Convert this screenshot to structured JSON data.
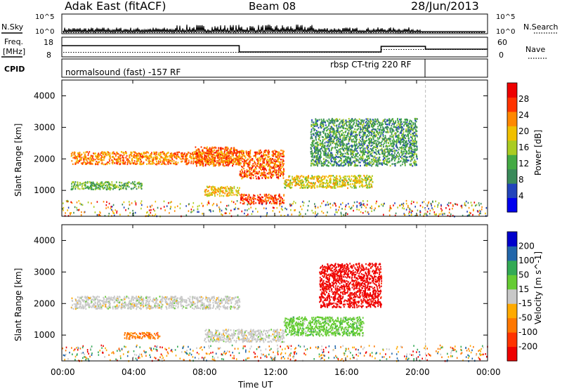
{
  "header": {
    "station": "Adak East (fitACF)",
    "beam": "Beam 08",
    "date": "28/Jun/2013"
  },
  "panels": {
    "nsky_label": "N.Sky",
    "nsearch_label": "N.Search",
    "freq_label_1": "Freq.",
    "freq_label_2": "[MHz]",
    "nave_label": "Nave",
    "cpid_label": "CPID",
    "nsky_ticks": [
      "10^5",
      "10^0"
    ],
    "nsearch_ticks": [
      "10^5",
      "10^0"
    ],
    "freq_ticks": [
      "18",
      "8"
    ],
    "nave_ticks": [
      "60",
      "0"
    ],
    "cpid_left": "normalsound (fast) -157 RF",
    "cpid_right": "rbsp CT-trig 220 RF"
  },
  "colors": {
    "power_scale": [
      "#0000ee",
      "#2244bb",
      "#3a8a5a",
      "#44aa44",
      "#aacc22",
      "#f0c000",
      "#ff8800",
      "#ff3300",
      "#ee0000"
    ],
    "velocity_scale": [
      "#0000cc",
      "#2266aa",
      "#33aa55",
      "#66cc33",
      "#c8c8c8",
      "#ffaa00",
      "#ff7700",
      "#ff3300",
      "#ee0000"
    ]
  },
  "chart_data": [
    {
      "type": "heatmap",
      "title": "",
      "xlabel": "Time UT",
      "ylabel": "Slant Range [km]",
      "x_ticks": [
        "00:00",
        "04:00",
        "08:00",
        "12:00",
        "16:00",
        "20:00",
        "00:00"
      ],
      "y_ticks": [
        "1000",
        "2000",
        "3000",
        "4000"
      ],
      "colorbar_label": "Power [dB]",
      "colorbar_ticks": [
        "4",
        "8",
        "12",
        "16",
        "20",
        "24",
        "28"
      ],
      "xlim_hours": [
        0,
        24
      ],
      "ylim_km": [
        180,
        4500
      ],
      "cpid_change_time_ut": "20:30",
      "features": [
        {
          "t": [
            0.5,
            10.0
          ],
          "r": [
            1850,
            2250
          ],
          "power": 24
        },
        {
          "t": [
            0.5,
            4.5
          ],
          "r": [
            1050,
            1300
          ],
          "power": 12
        },
        {
          "t": [
            7.5,
            10.0
          ],
          "r": [
            1800,
            2400
          ],
          "power": 26
        },
        {
          "t": [
            8.0,
            10.0
          ],
          "r": [
            850,
            1150
          ],
          "power": 20
        },
        {
          "t": [
            10.0,
            12.5
          ],
          "r": [
            600,
            900
          ],
          "power": 28
        },
        {
          "t": [
            10.0,
            12.5
          ],
          "r": [
            1400,
            2300
          ],
          "power": 26
        },
        {
          "t": [
            12.5,
            17.5
          ],
          "r": [
            1100,
            1500
          ],
          "power": 18
        },
        {
          "t": [
            14.0,
            20.0
          ],
          "r": [
            1800,
            3300
          ],
          "power": 10
        }
      ]
    },
    {
      "type": "heatmap",
      "title": "",
      "xlabel": "Time UT",
      "ylabel": "Slant Range [km]",
      "x_ticks": [
        "00:00",
        "04:00",
        "08:00",
        "12:00",
        "16:00",
        "20:00",
        "00:00"
      ],
      "y_ticks": [
        "1000",
        "2000",
        "3000",
        "4000"
      ],
      "colorbar_label": "Velocity [m s^-1]",
      "colorbar_ticks": [
        "200",
        "100",
        "50",
        "15",
        "-15",
        "-50",
        "-100",
        "-200"
      ],
      "xlim_hours": [
        0,
        24
      ],
      "ylim_km": [
        180,
        4500
      ],
      "features": [
        {
          "t": [
            0.5,
            10.0
          ],
          "r": [
            1850,
            2250
          ],
          "velocity": 0
        },
        {
          "t": [
            8.0,
            12.5
          ],
          "r": [
            800,
            1200
          ],
          "velocity": 0
        },
        {
          "t": [
            12.5,
            17.0
          ],
          "r": [
            1000,
            1600
          ],
          "velocity": 60
        },
        {
          "t": [
            14.5,
            18.0
          ],
          "r": [
            1900,
            3300
          ],
          "velocity": -250
        },
        {
          "t": [
            3.5,
            5.5
          ],
          "r": [
            900,
            1100
          ],
          "velocity": -80
        }
      ]
    }
  ]
}
